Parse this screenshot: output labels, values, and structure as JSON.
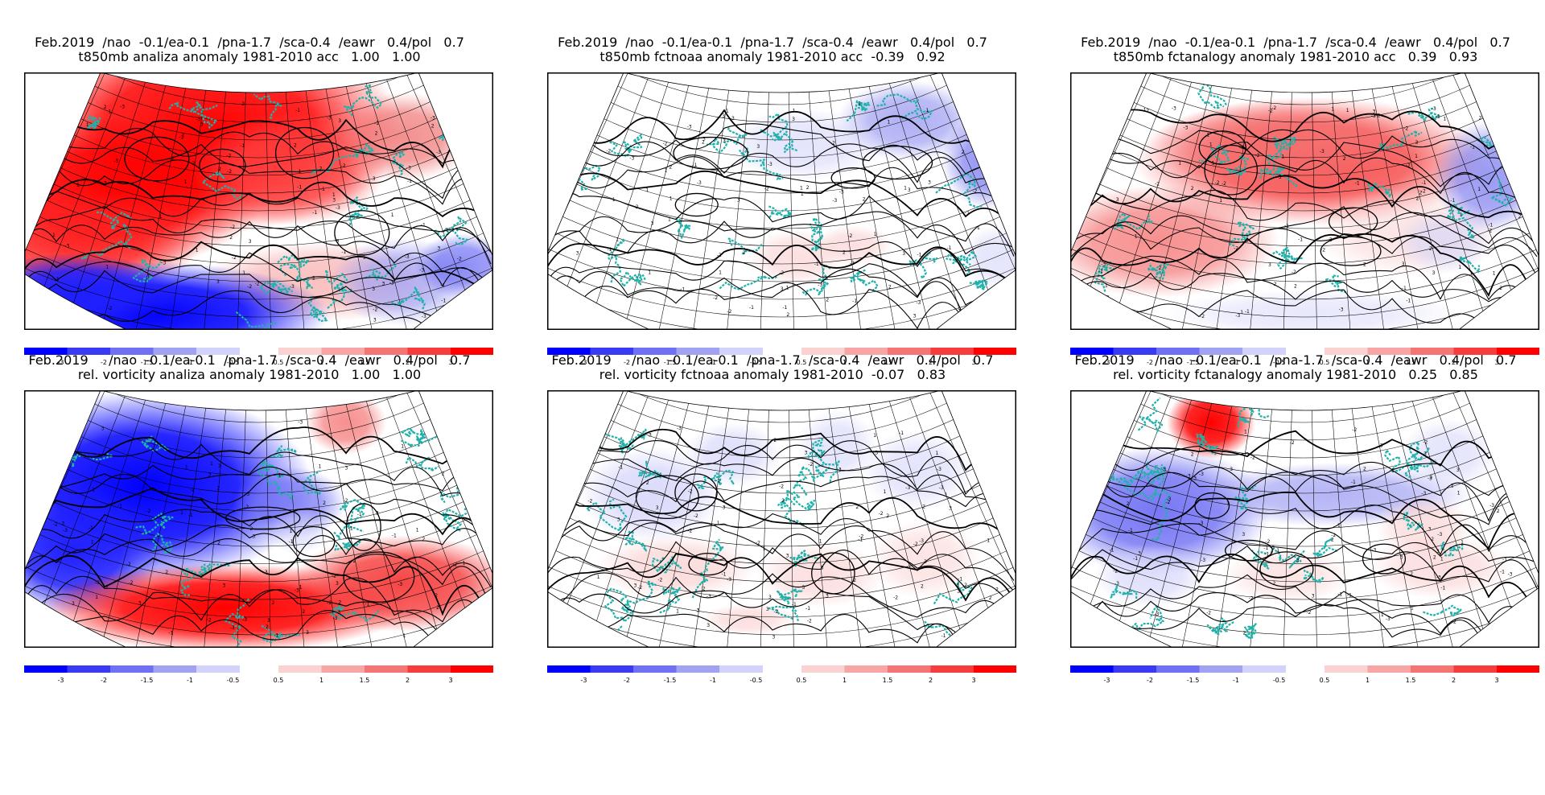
{
  "panels": [
    {
      "line1": "Feb.2019  /nao  -0.1/ea-0.1  /pna-1.7  /sca-0.4  /eawr   0.4/pol   0.7",
      "line2": "t850mb analiza anomaly 1981-2010 acc   1.00   1.00",
      "mode": "obs_t"
    },
    {
      "line1": "Feb.2019  /nao  -0.1/ea-0.1  /pna-1.7  /sca-0.4  /eawr   0.4/pol   0.7",
      "line2": "t850mb fctnoaa anomaly 1981-2010 acc  -0.39   0.92",
      "mode": "noaa_t"
    },
    {
      "line1": "Feb.2019  /nao  -0.1/ea-0.1  /pna-1.7  /sca-0.4  /eawr   0.4/pol   0.7",
      "line2": "t850mb fctanalogy anomaly 1981-2010 acc   0.39   0.93",
      "mode": "ana_t"
    },
    {
      "line1": "Feb.2019     /nao  -0.1/ea-0.1  /pna-1.7  /sca-0.4  /eawr   0.4/pol   0.7",
      "line2": "rel. vorticity analiza anomaly 1981-2010   1.00   1.00",
      "mode": "obs_v"
    },
    {
      "line1": "Feb.2019     /nao  -0.1/ea-0.1  /pna-1.7  /sca-0.4  /eawr   0.4/pol   0.7",
      "line2": "rel. vorticity fctnoaa anomaly 1981-2010  -0.07   0.83",
      "mode": "noaa_v"
    },
    {
      "line1": "Feb.2019     /nao  -0.1/ea-0.1  /pna-1.7  /sca-0.4  /eawr   0.4/pol   0.7",
      "line2": "rel. vorticity fctanalogy anomaly 1981-2010   0.25   0.85",
      "mode": "ana_v"
    }
  ],
  "colorbar": {
    "neg_colors": [
      "#0000ff",
      "#3a3af5",
      "#7070f4",
      "#a2a2f3",
      "#d2d2fa"
    ],
    "pos_colors": [
      "#fad2d2",
      "#f7a5a5",
      "#f57474",
      "#f63c3c",
      "#ff0000"
    ],
    "neg_labels": [
      "-3",
      "-2",
      "-1.5",
      "-1",
      "-0.5"
    ],
    "pos_labels": [
      "0.5",
      "1",
      "1.5",
      "2",
      "3"
    ]
  },
  "map_colors": {
    "coastline": "#20b2aa",
    "contour": "#000000",
    "grid": "#000000"
  }
}
